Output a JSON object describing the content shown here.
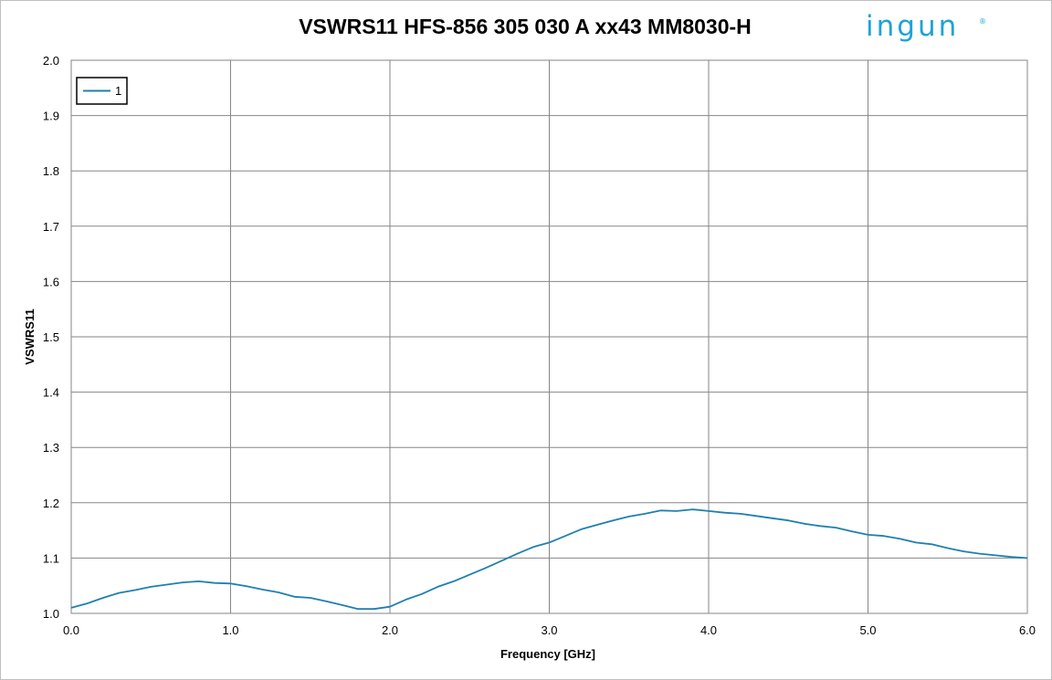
{
  "chart_data": {
    "type": "line",
    "title": "VSWRS11 HFS-856 305 030 A xx43 MM8030-H",
    "xlabel": "Frequency [GHz]",
    "ylabel": "VSWRS11",
    "xlim": [
      0.0,
      6.0
    ],
    "ylim": [
      1.0,
      2.0
    ],
    "x_ticks": [
      "0.0",
      "1.0",
      "2.0",
      "3.0",
      "4.0",
      "5.0",
      "6.0"
    ],
    "y_ticks": [
      "1.0",
      "1.1",
      "1.2",
      "1.3",
      "1.4",
      "1.5",
      "1.6",
      "1.7",
      "1.8",
      "1.9",
      "2.0"
    ],
    "grid": true,
    "legend_position": "top-left",
    "series": [
      {
        "name": "1",
        "color": "#1f7fb0",
        "x": [
          0.0,
          0.1,
          0.2,
          0.3,
          0.4,
          0.5,
          0.6,
          0.7,
          0.8,
          0.9,
          1.0,
          1.1,
          1.2,
          1.3,
          1.4,
          1.5,
          1.6,
          1.7,
          1.8,
          1.9,
          2.0,
          2.1,
          2.2,
          2.3,
          2.4,
          2.5,
          2.6,
          2.7,
          2.8,
          2.9,
          3.0,
          3.1,
          3.2,
          3.3,
          3.4,
          3.5,
          3.6,
          3.7,
          3.8,
          3.9,
          4.0,
          4.1,
          4.2,
          4.3,
          4.4,
          4.5,
          4.6,
          4.7,
          4.8,
          4.9,
          5.0,
          5.1,
          5.2,
          5.3,
          5.4,
          5.5,
          5.6,
          5.7,
          5.8,
          5.9,
          6.0
        ],
        "values": [
          1.01,
          1.018,
          1.028,
          1.037,
          1.042,
          1.048,
          1.052,
          1.056,
          1.058,
          1.055,
          1.054,
          1.049,
          1.043,
          1.038,
          1.03,
          1.028,
          1.022,
          1.015,
          1.008,
          1.008,
          1.012,
          1.025,
          1.035,
          1.048,
          1.058,
          1.07,
          1.082,
          1.095,
          1.108,
          1.12,
          1.128,
          1.14,
          1.152,
          1.16,
          1.168,
          1.175,
          1.18,
          1.186,
          1.185,
          1.188,
          1.185,
          1.182,
          1.18,
          1.176,
          1.172,
          1.168,
          1.162,
          1.158,
          1.155,
          1.148,
          1.142,
          1.14,
          1.135,
          1.128,
          1.125,
          1.118,
          1.112,
          1.108,
          1.105,
          1.102,
          1.1
        ]
      }
    ]
  },
  "logo": {
    "text": "ingun",
    "color": "#1ca3d6",
    "registered": "®"
  }
}
